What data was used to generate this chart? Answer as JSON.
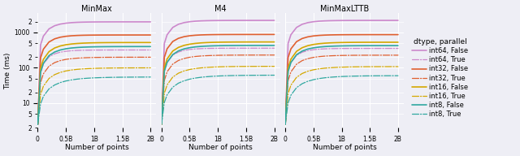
{
  "algorithms": [
    "MinMax",
    "M4",
    "MinMaxLTTB"
  ],
  "xlabel": "Number of points",
  "ylabel": "Time (ms)",
  "background_color": "#eeeef5",
  "grid_color": "#ffffff",
  "x_max": 2100000000.0,
  "x_ticks": [
    0,
    500000000.0,
    1000000000.0,
    1500000000.0,
    2000000000.0
  ],
  "x_tick_labels": [
    "0",
    "0.5B",
    "1B",
    "1.5B",
    "2B"
  ],
  "y_lim": [
    2.0,
    3500
  ],
  "series": [
    {
      "label": "int64, False",
      "color": "#cc88cc",
      "linestyle": "-",
      "linewidth": 1.2
    },
    {
      "label": "int64, True",
      "color": "#cc88cc",
      "linestyle": "-.",
      "linewidth": 0.9
    },
    {
      "label": "int32, False",
      "color": "#e06030",
      "linestyle": "-",
      "linewidth": 1.2
    },
    {
      "label": "int32, True",
      "color": "#e06030",
      "linestyle": "-.",
      "linewidth": 0.9
    },
    {
      "label": "int16, False",
      "color": "#d4a800",
      "linestyle": "-",
      "linewidth": 1.2
    },
    {
      "label": "int16, True",
      "color": "#d4a800",
      "linestyle": "-.",
      "linewidth": 0.9
    },
    {
      "label": "int8, False",
      "color": "#30a8a0",
      "linestyle": "-",
      "linewidth": 1.2
    },
    {
      "label": "int8, True",
      "color": "#30a8a0",
      "linestyle": "-.",
      "linewidth": 0.9
    }
  ],
  "x_points": [
    0,
    50000000.0,
    100000000.0,
    200000000.0,
    300000000.0,
    400000000.0,
    500000000.0,
    600000000.0,
    700000000.0,
    800000000.0,
    900000000.0,
    1000000000.0,
    1100000000.0,
    1200000000.0,
    1300000000.0,
    1400000000.0,
    1500000000.0,
    1600000000.0,
    1700000000.0,
    1800000000.0,
    1900000000.0,
    2000000000.0
  ],
  "legend_title": "dtype, parallel",
  "title_fontsize": 7,
  "label_fontsize": 6.5,
  "tick_fontsize": 5.5,
  "legend_fontsize": 6.0,
  "legend_title_fontsize": 6.5
}
